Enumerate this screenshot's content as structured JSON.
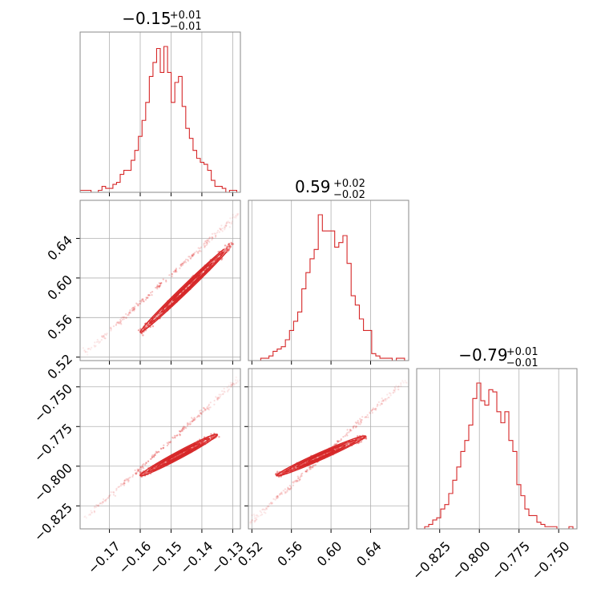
{
  "chart_data": {
    "type": "corner",
    "line_color": "#d62728",
    "parameters": [
      {
        "median": "−0.15",
        "plus": "+0.01",
        "minus": "−0.01",
        "range": [
          -0.1795,
          -0.1275
        ],
        "ticks": [
          -0.17,
          -0.16,
          -0.15,
          -0.14,
          -0.13
        ],
        "tick_labels": [
          "−0.17",
          "−0.16",
          "−0.15",
          "−0.14",
          "−0.13"
        ],
        "hist": [
          1,
          1,
          1,
          0,
          0,
          1,
          3,
          2,
          2,
          4,
          5,
          9,
          11,
          11,
          16,
          21,
          28,
          36,
          45,
          58,
          65,
          72,
          60,
          73,
          60,
          45,
          55,
          58,
          43,
          32,
          27,
          21,
          17,
          15,
          14,
          11,
          6,
          3,
          3,
          2,
          0,
          1,
          1,
          0
        ]
      },
      {
        "median": "0.59",
        "plus": "+0.02",
        "minus": "−0.02",
        "range": [
          0.5165,
          0.6785
        ],
        "ticks": [
          0.52,
          0.56,
          0.6,
          0.64
        ],
        "tick_labels": [
          "0.52",
          "0.56",
          "0.60",
          "0.64"
        ],
        "hist": [
          0,
          0,
          0,
          1,
          1,
          2,
          4,
          5,
          6,
          9,
          13,
          17,
          21,
          31,
          38,
          44,
          48,
          63,
          56,
          56,
          56,
          49,
          51,
          54,
          42,
          28,
          24,
          18,
          13,
          13,
          3,
          2,
          1,
          1,
          1,
          0,
          1,
          1,
          0
        ]
      },
      {
        "median": "−0.79",
        "plus": "+0.01",
        "minus": "−0.01",
        "range": [
          -0.8395,
          -0.7385
        ],
        "ticks": [
          -0.825,
          -0.8,
          -0.775,
          -0.75
        ],
        "tick_labels": [
          "−0.825",
          "−0.800",
          "−0.775",
          "−0.750"
        ],
        "hist": [
          0,
          0,
          1,
          2,
          4,
          5,
          9,
          11,
          16,
          22,
          28,
          35,
          40,
          47,
          59,
          66,
          58,
          56,
          63,
          62,
          53,
          48,
          53,
          40,
          35,
          20,
          15,
          9,
          6,
          6,
          3,
          2,
          1,
          1,
          1,
          0,
          0,
          0,
          1,
          0
        ]
      }
    ]
  }
}
